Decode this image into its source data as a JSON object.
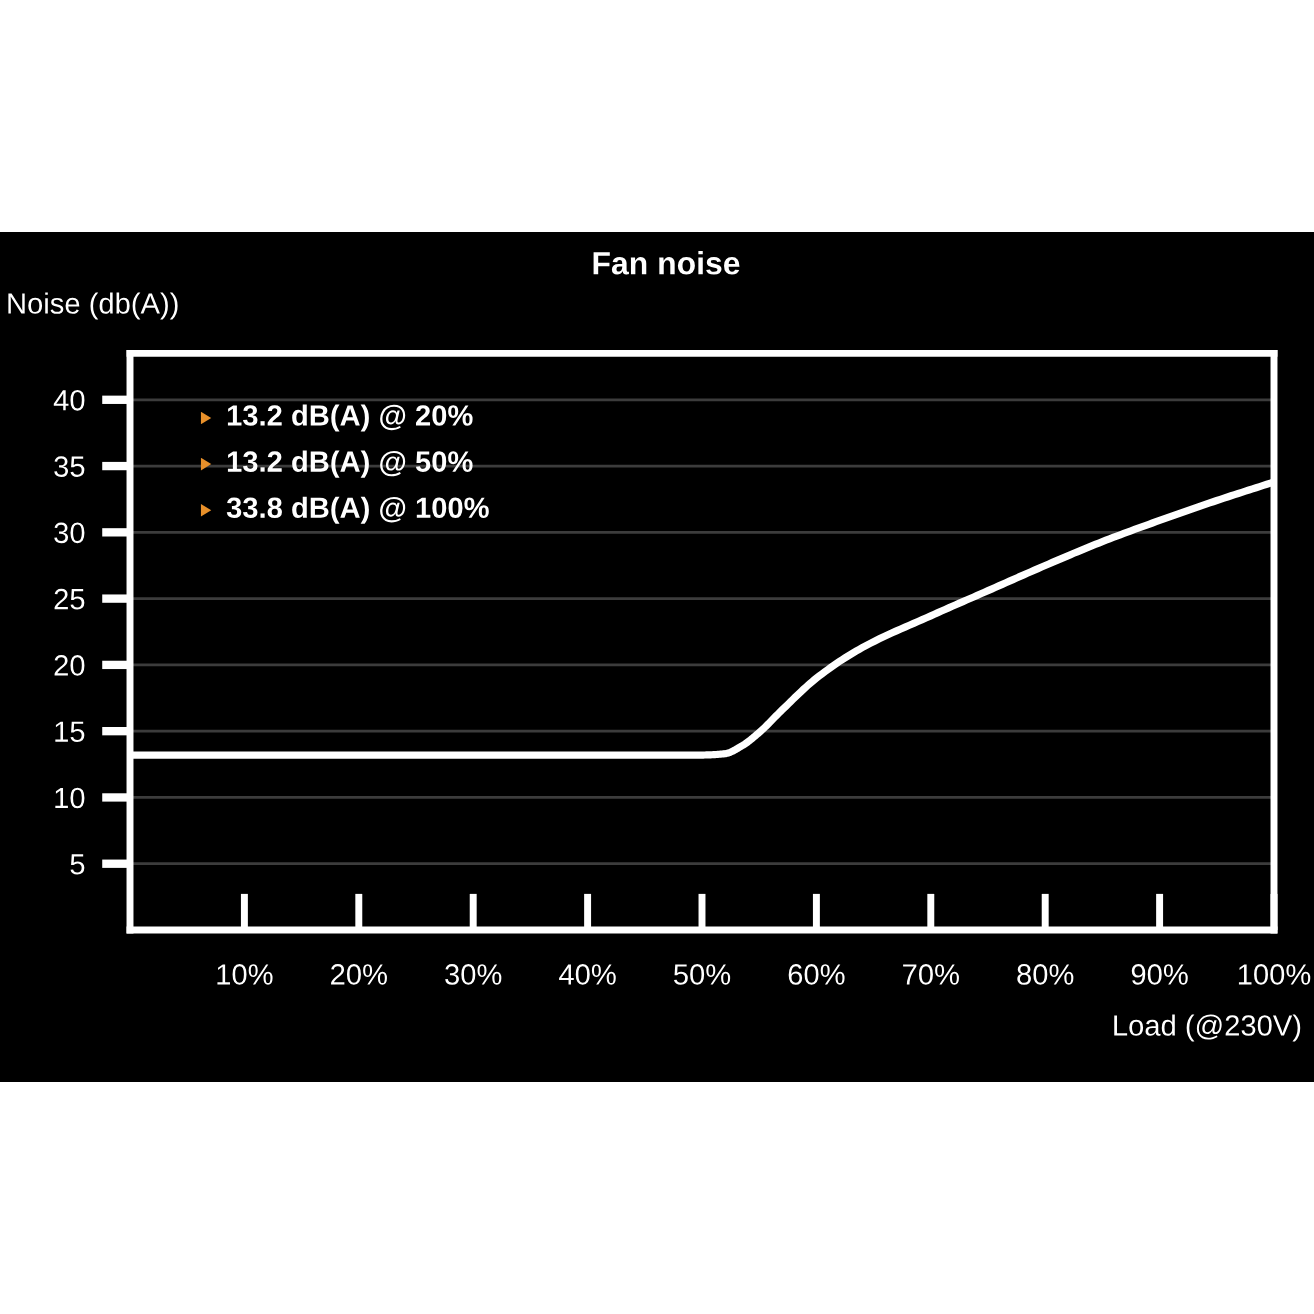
{
  "chart_data": {
    "type": "line",
    "title": "Fan noise",
    "xlabel": "Load (@230V)",
    "ylabel": "Noise (db(A))",
    "x": [
      0,
      10,
      20,
      30,
      40,
      50,
      52,
      53.5,
      55,
      57,
      60,
      64,
      70,
      75,
      80,
      85,
      90,
      95,
      100
    ],
    "series": [
      {
        "color": "#ffffff",
        "values": [
          13.2,
          13.2,
          13.2,
          13.2,
          13.2,
          13.2,
          13.3,
          13.9,
          14.9,
          16.6,
          19.0,
          21.3,
          23.7,
          25.6,
          27.5,
          29.3,
          30.9,
          32.4,
          33.8
        ]
      }
    ],
    "xlim": [
      0,
      100
    ],
    "ylim": [
      0,
      43.5
    ],
    "xticks": [
      {
        "value": 10,
        "label": "10%"
      },
      {
        "value": 20,
        "label": "20%"
      },
      {
        "value": 30,
        "label": "30%"
      },
      {
        "value": 40,
        "label": "40%"
      },
      {
        "value": 50,
        "label": "50%"
      },
      {
        "value": 60,
        "label": "60%"
      },
      {
        "value": 70,
        "label": "70%"
      },
      {
        "value": 80,
        "label": "80%"
      },
      {
        "value": 90,
        "label": "90%"
      },
      {
        "value": 100,
        "label": "100%"
      }
    ],
    "yticks": [
      5,
      10,
      15,
      20,
      25,
      30,
      35,
      40
    ],
    "grid": "y",
    "marker": "none",
    "line_style": "solid",
    "annotations": [
      "13.2 dB(A) @ 20%",
      "13.2 dB(A) @ 50%",
      "33.8 dB(A) @ 100%"
    ]
  }
}
